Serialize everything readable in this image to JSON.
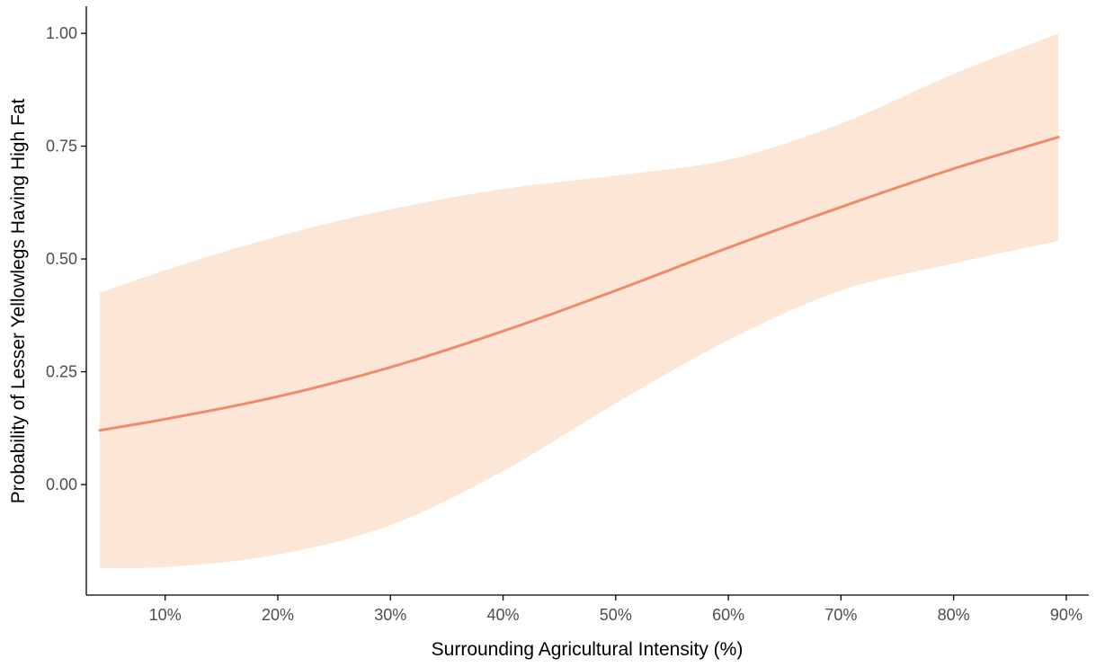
{
  "chart_data": {
    "type": "line",
    "title": "",
    "xlabel": "Surrounding Agricultural Intensity (%)",
    "ylabel": "Probability of Lesser Yellowlegs Having High Fat",
    "xlim": [
      3,
      92
    ],
    "ylim": [
      -0.245,
      1.06
    ],
    "x_ticks": [
      10,
      20,
      30,
      40,
      50,
      60,
      70,
      80,
      90
    ],
    "x_tick_labels": [
      "10%",
      "20%",
      "30%",
      "40%",
      "50%",
      "60%",
      "70%",
      "80%",
      "90%"
    ],
    "y_ticks": [
      0,
      0.25,
      0.5,
      0.75,
      1.0
    ],
    "y_tick_labels": [
      "0.00",
      "0.25",
      "0.50",
      "0.75",
      "1.00"
    ],
    "grid": false,
    "line_color": "#ef8a6a",
    "band_color": "#fce6d5",
    "series": [
      {
        "x": [
          4.2,
          10,
          20,
          30,
          40,
          50,
          60,
          70,
          80,
          89.3
        ],
        "values": [
          0.12,
          0.145,
          0.195,
          0.26,
          0.34,
          0.43,
          0.525,
          0.615,
          0.7,
          0.77
        ],
        "lower": [
          -0.185,
          -0.183,
          -0.155,
          -0.09,
          0.03,
          0.18,
          0.32,
          0.43,
          0.49,
          0.54
        ],
        "upper": [
          0.425,
          0.475,
          0.55,
          0.61,
          0.655,
          0.685,
          0.72,
          0.8,
          0.91,
          1.0
        ]
      }
    ]
  }
}
